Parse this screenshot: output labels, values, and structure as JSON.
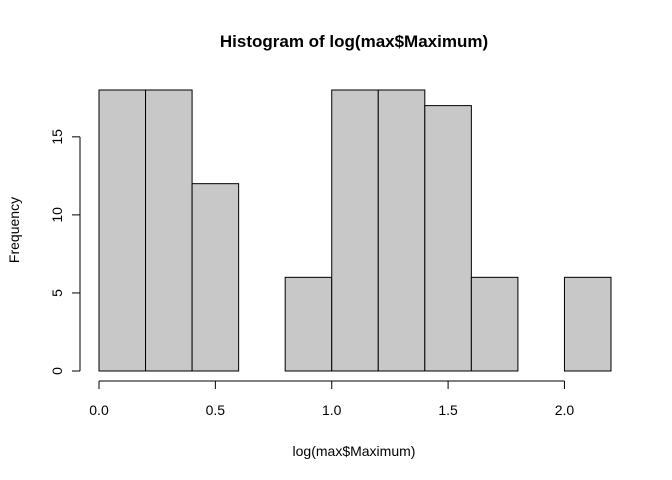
{
  "chart_data": {
    "type": "bar",
    "title": "Histogram of log(max$Maximum)",
    "xlabel": "log(max$Maximum)",
    "ylabel": "Frequency",
    "bins": [
      {
        "from": 0.0,
        "to": 0.2,
        "value": 18
      },
      {
        "from": 0.2,
        "to": 0.4,
        "value": 18
      },
      {
        "from": 0.4,
        "to": 0.6,
        "value": 12
      },
      {
        "from": 0.6,
        "to": 0.8,
        "value": 0
      },
      {
        "from": 0.8,
        "to": 1.0,
        "value": 6
      },
      {
        "from": 1.0,
        "to": 1.2,
        "value": 18
      },
      {
        "from": 1.2,
        "to": 1.4,
        "value": 18
      },
      {
        "from": 1.4,
        "to": 1.6,
        "value": 17
      },
      {
        "from": 1.6,
        "to": 1.8,
        "value": 6
      },
      {
        "from": 1.8,
        "to": 2.0,
        "value": 0
      },
      {
        "from": 2.0,
        "to": 2.2,
        "value": 6
      }
    ],
    "x_ticks": [
      {
        "value": 0.0,
        "label": "0.0"
      },
      {
        "value": 0.5,
        "label": "0.5"
      },
      {
        "value": 1.0,
        "label": "1.0"
      },
      {
        "value": 1.5,
        "label": "1.5"
      },
      {
        "value": 2.0,
        "label": "2.0"
      }
    ],
    "y_ticks": [
      {
        "value": 0,
        "label": "0"
      },
      {
        "value": 5,
        "label": "5"
      },
      {
        "value": 10,
        "label": "10"
      },
      {
        "value": 15,
        "label": "15"
      }
    ],
    "xlim": [
      0.0,
      2.2
    ],
    "ylim": [
      0,
      18
    ],
    "grid": false,
    "bar_color": "#c8c8c8",
    "edge_color": "#000000"
  }
}
